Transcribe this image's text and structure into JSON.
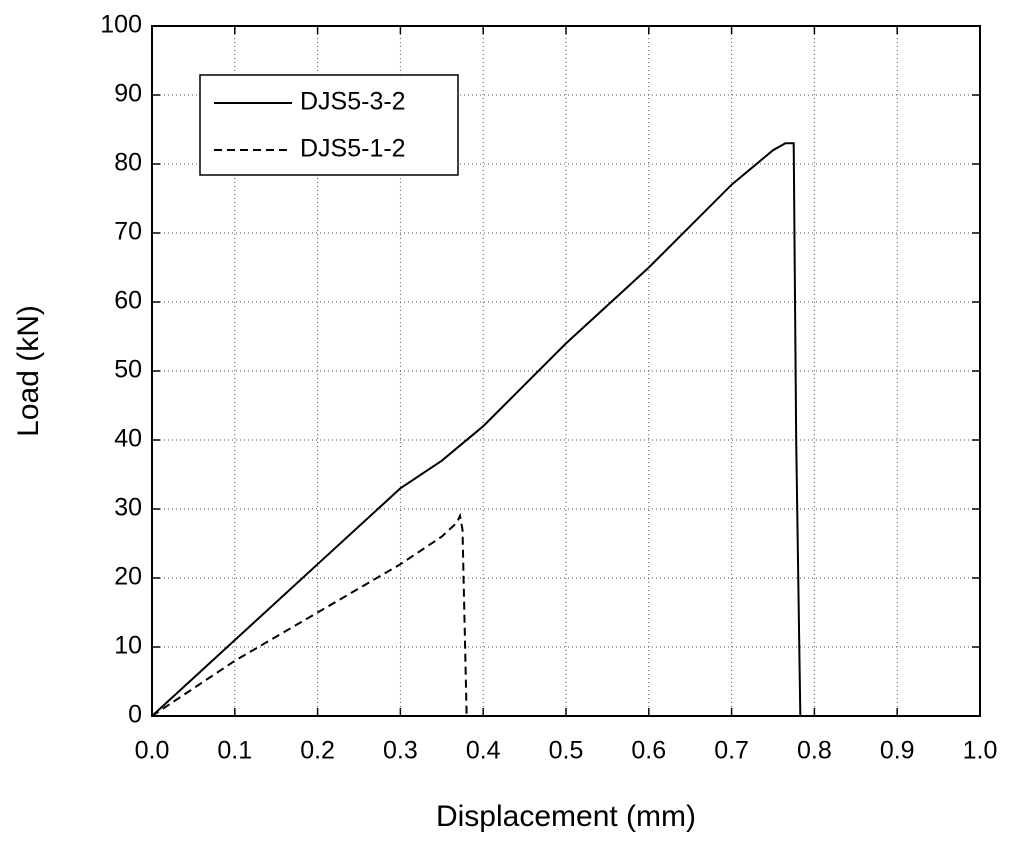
{
  "chart_data": {
    "type": "line",
    "xlabel": "Displacement (mm)",
    "ylabel": "Load (kN)",
    "xlim": [
      0,
      1
    ],
    "ylim": [
      0,
      100
    ],
    "xticks": [
      {
        "value": 0,
        "label": "0.0"
      },
      0.1,
      0.2,
      0.3,
      0.4,
      0.5,
      0.6,
      0.7,
      0.8,
      0.9,
      {
        "value": 1,
        "label": "1.0"
      }
    ],
    "yticks": [
      0,
      10,
      20,
      30,
      40,
      50,
      60,
      70,
      80,
      90,
      100
    ],
    "grid": true,
    "legend": "upper left",
    "series": [
      {
        "name": "DJS5-3-2",
        "color": "#000000",
        "linestyle": "solid",
        "x": [
          0,
          0.1,
          0.2,
          0.3,
          0.35,
          0.4,
          0.45,
          0.5,
          0.6,
          0.7,
          0.75,
          0.765,
          0.775,
          0.778,
          0.783,
          0.85
        ],
        "values": [
          0,
          11,
          22,
          33,
          37,
          42,
          48,
          54,
          65,
          77,
          82,
          83,
          83,
          40,
          0,
          0
        ]
      },
      {
        "name": "DJS5-1-2",
        "color": "#000000",
        "linestyle": "dashed",
        "x": [
          0,
          0.1,
          0.2,
          0.3,
          0.35,
          0.368,
          0.372,
          0.375,
          0.38
        ],
        "values": [
          0,
          8,
          15,
          22,
          26,
          28,
          29,
          27,
          0
        ]
      }
    ]
  }
}
